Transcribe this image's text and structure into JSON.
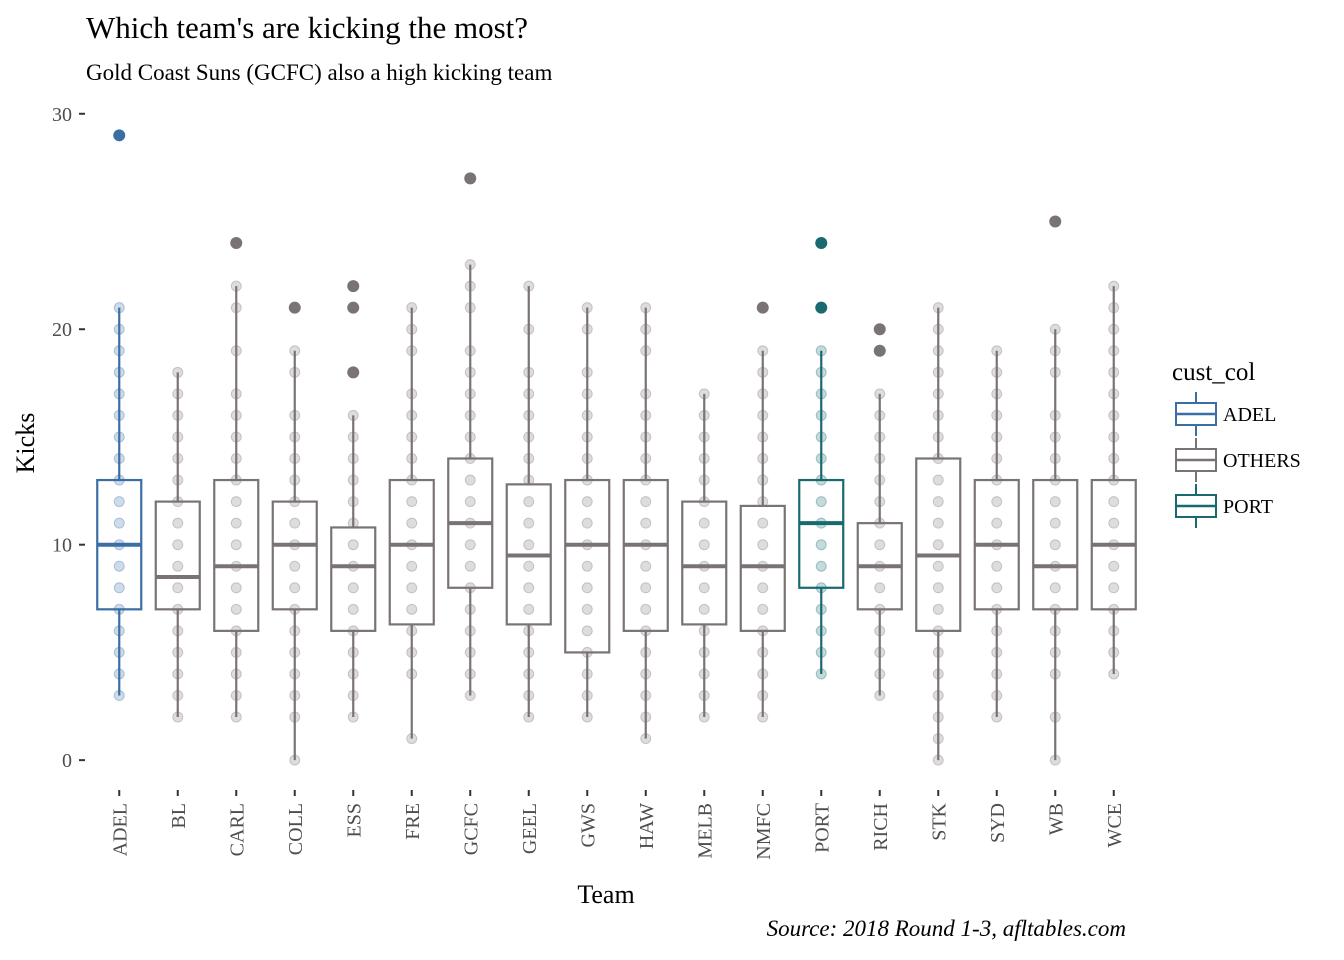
{
  "chart_data": {
    "type": "box",
    "title": "Which team's are kicking the most?",
    "subtitle": "Gold Coast Suns (GCFC) also a high kicking team",
    "caption": "Source: 2018 Round 1-3, afltables.com",
    "xlabel": "Team",
    "ylabel": "Kicks",
    "ylim": [
      -1.2,
      30.5
    ],
    "yticks": [
      0,
      10,
      20,
      30
    ],
    "grid": false,
    "legend": {
      "title": "cust_col",
      "position": "right",
      "entries": [
        {
          "label": "ADEL",
          "color": "#3a6ea5"
        },
        {
          "label": "OTHERS",
          "color": "#7a7374"
        },
        {
          "label": "PORT",
          "color": "#186a70"
        }
      ]
    },
    "categories": [
      "ADEL",
      "BL",
      "CARL",
      "COLL",
      "ESS",
      "FRE",
      "GCFC",
      "GEEL",
      "GWS",
      "HAW",
      "MELB",
      "NMFC",
      "PORT",
      "RICH",
      "STK",
      "SYD",
      "WB",
      "WCE"
    ],
    "boxes": [
      {
        "team": "ADEL",
        "group": "ADEL",
        "lower": 3,
        "q1": 7,
        "median": 10,
        "q3": 13,
        "upper": 21,
        "outliers": [
          29
        ],
        "points": [
          3,
          4,
          5,
          6,
          7,
          8,
          9,
          10,
          11,
          12,
          13,
          14,
          15,
          16,
          17,
          18,
          19,
          20,
          21
        ]
      },
      {
        "team": "BL",
        "group": "OTHERS",
        "lower": 2,
        "q1": 7,
        "median": 8.5,
        "q3": 12,
        "upper": 18,
        "outliers": [],
        "points": [
          2,
          3,
          4,
          5,
          6,
          7,
          8,
          9,
          10,
          11,
          12,
          13,
          14,
          15,
          16,
          17,
          18
        ]
      },
      {
        "team": "CARL",
        "group": "OTHERS",
        "lower": 2,
        "q1": 6,
        "median": 9,
        "q3": 13,
        "upper": 22,
        "outliers": [
          24
        ],
        "points": [
          2,
          3,
          4,
          5,
          6,
          7,
          8,
          9,
          10,
          11,
          12,
          13,
          14,
          15,
          16,
          17,
          19,
          21,
          22
        ]
      },
      {
        "team": "COLL",
        "group": "OTHERS",
        "lower": 0,
        "q1": 7,
        "median": 10,
        "q3": 12,
        "upper": 19,
        "outliers": [
          21
        ],
        "points": [
          0,
          2,
          3,
          4,
          5,
          6,
          7,
          8,
          9,
          10,
          11,
          12,
          13,
          14,
          15,
          16,
          18,
          19
        ]
      },
      {
        "team": "ESS",
        "group": "OTHERS",
        "lower": 2,
        "q1": 6,
        "median": 9,
        "q3": 10.8,
        "upper": 16,
        "outliers": [
          18,
          21,
          22
        ],
        "points": [
          2,
          3,
          4,
          5,
          6,
          7,
          8,
          9,
          10,
          11,
          12,
          13,
          14,
          15,
          16
        ]
      },
      {
        "team": "FRE",
        "group": "OTHERS",
        "lower": 1,
        "q1": 6.3,
        "median": 10,
        "q3": 13,
        "upper": 21,
        "outliers": [],
        "points": [
          1,
          4,
          5,
          6,
          7,
          8,
          9,
          10,
          11,
          12,
          13,
          14,
          15,
          16,
          17,
          19,
          20,
          21
        ]
      },
      {
        "team": "GCFC",
        "group": "OTHERS",
        "lower": 3,
        "q1": 8,
        "median": 11,
        "q3": 14,
        "upper": 23,
        "outliers": [
          27
        ],
        "points": [
          3,
          4,
          5,
          6,
          7,
          8,
          9,
          10,
          11,
          12,
          13,
          14,
          15,
          16,
          17,
          18,
          19,
          21,
          22,
          23
        ]
      },
      {
        "team": "GEEL",
        "group": "OTHERS",
        "lower": 2,
        "q1": 6.3,
        "median": 9.5,
        "q3": 12.8,
        "upper": 22,
        "outliers": [],
        "points": [
          2,
          3,
          4,
          5,
          6,
          7,
          8,
          9,
          10,
          11,
          12,
          13,
          14,
          15,
          16,
          17,
          18,
          20,
          22
        ]
      },
      {
        "team": "GWS",
        "group": "OTHERS",
        "lower": 2,
        "q1": 5,
        "median": 10,
        "q3": 13,
        "upper": 21,
        "outliers": [],
        "points": [
          2,
          3,
          4,
          5,
          6,
          7,
          8,
          9,
          10,
          11,
          12,
          13,
          14,
          15,
          16,
          17,
          18,
          20,
          21
        ]
      },
      {
        "team": "HAW",
        "group": "OTHERS",
        "lower": 1,
        "q1": 6,
        "median": 10,
        "q3": 13,
        "upper": 21,
        "outliers": [],
        "points": [
          1,
          2,
          3,
          4,
          5,
          6,
          7,
          8,
          9,
          10,
          11,
          12,
          13,
          14,
          15,
          16,
          17,
          19,
          20,
          21
        ]
      },
      {
        "team": "MELB",
        "group": "OTHERS",
        "lower": 2,
        "q1": 6.3,
        "median": 9,
        "q3": 12,
        "upper": 17,
        "outliers": [],
        "points": [
          2,
          3,
          4,
          5,
          6,
          7,
          8,
          9,
          10,
          11,
          12,
          13,
          14,
          15,
          16,
          17
        ]
      },
      {
        "team": "NMFC",
        "group": "OTHERS",
        "lower": 2,
        "q1": 6,
        "median": 9,
        "q3": 11.8,
        "upper": 19,
        "outliers": [
          21
        ],
        "points": [
          2,
          3,
          4,
          5,
          6,
          7,
          8,
          9,
          10,
          11,
          12,
          13,
          14,
          15,
          16,
          17,
          18,
          19
        ]
      },
      {
        "team": "PORT",
        "group": "PORT",
        "lower": 4,
        "q1": 8,
        "median": 11,
        "q3": 13,
        "upper": 19,
        "outliers": [
          21,
          24
        ],
        "points": [
          4,
          5,
          6,
          7,
          8,
          9,
          10,
          11,
          12,
          13,
          14,
          15,
          16,
          17,
          18,
          19
        ]
      },
      {
        "team": "RICH",
        "group": "OTHERS",
        "lower": 3,
        "q1": 7,
        "median": 9,
        "q3": 11,
        "upper": 17,
        "outliers": [
          19,
          20
        ],
        "points": [
          3,
          4,
          5,
          6,
          7,
          8,
          9,
          10,
          11,
          12,
          13,
          14,
          15,
          16,
          17
        ]
      },
      {
        "team": "STK",
        "group": "OTHERS",
        "lower": 0,
        "q1": 6,
        "median": 9.5,
        "q3": 14,
        "upper": 21,
        "outliers": [],
        "points": [
          0,
          1,
          2,
          3,
          4,
          5,
          6,
          7,
          8,
          9,
          10,
          11,
          12,
          13,
          14,
          15,
          16,
          17,
          18,
          19,
          20,
          21
        ]
      },
      {
        "team": "SYD",
        "group": "OTHERS",
        "lower": 2,
        "q1": 7,
        "median": 10,
        "q3": 13,
        "upper": 19,
        "outliers": [],
        "points": [
          2,
          3,
          4,
          5,
          6,
          7,
          8,
          9,
          10,
          11,
          12,
          13,
          14,
          15,
          16,
          17,
          18,
          19
        ]
      },
      {
        "team": "WB",
        "group": "OTHERS",
        "lower": 0,
        "q1": 7,
        "median": 9,
        "q3": 13,
        "upper": 20,
        "outliers": [
          25
        ],
        "points": [
          0,
          2,
          4,
          5,
          6,
          7,
          8,
          9,
          10,
          11,
          12,
          13,
          14,
          15,
          16,
          18,
          19,
          20
        ]
      },
      {
        "team": "WCE",
        "group": "OTHERS",
        "lower": 4,
        "q1": 7,
        "median": 10,
        "q3": 13,
        "upper": 22,
        "outliers": [],
        "points": [
          4,
          5,
          6,
          7,
          8,
          9,
          10,
          11,
          12,
          13,
          14,
          15,
          16,
          17,
          18,
          19,
          20,
          21,
          22
        ]
      }
    ]
  }
}
